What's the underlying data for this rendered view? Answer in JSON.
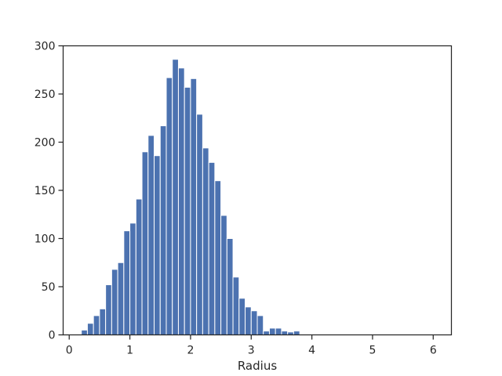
{
  "chart_data": {
    "type": "bar",
    "xlabel": "Radius",
    "ylabel": "",
    "title": "",
    "xlim": [
      -0.1,
      6.3
    ],
    "ylim": [
      0,
      300
    ],
    "xticks": [
      0,
      1,
      2,
      3,
      4,
      5,
      6
    ],
    "yticks": [
      0,
      50,
      100,
      150,
      200,
      250,
      300
    ],
    "grid": false,
    "bar_color": "#4c72b0",
    "bin_width": 0.1,
    "x": [
      0.25,
      0.35,
      0.45,
      0.55,
      0.65,
      0.75,
      0.85,
      0.95,
      1.05,
      1.15,
      1.25,
      1.35,
      1.45,
      1.55,
      1.65,
      1.75,
      1.85,
      1.95,
      2.05,
      2.15,
      2.25,
      2.35,
      2.45,
      2.55,
      2.65,
      2.75,
      2.85,
      2.95,
      3.05,
      3.15,
      3.25,
      3.35,
      3.45,
      3.55,
      3.65,
      3.75,
      3.85,
      3.95
    ],
    "values": [
      5,
      12,
      20,
      27,
      52,
      68,
      75,
      108,
      116,
      141,
      190,
      207,
      186,
      217,
      267,
      286,
      277,
      257,
      266,
      229,
      194,
      179,
      160,
      124,
      100,
      60,
      38,
      29,
      25,
      20,
      4,
      7,
      7,
      4,
      3,
      4,
      0,
      0
    ]
  }
}
